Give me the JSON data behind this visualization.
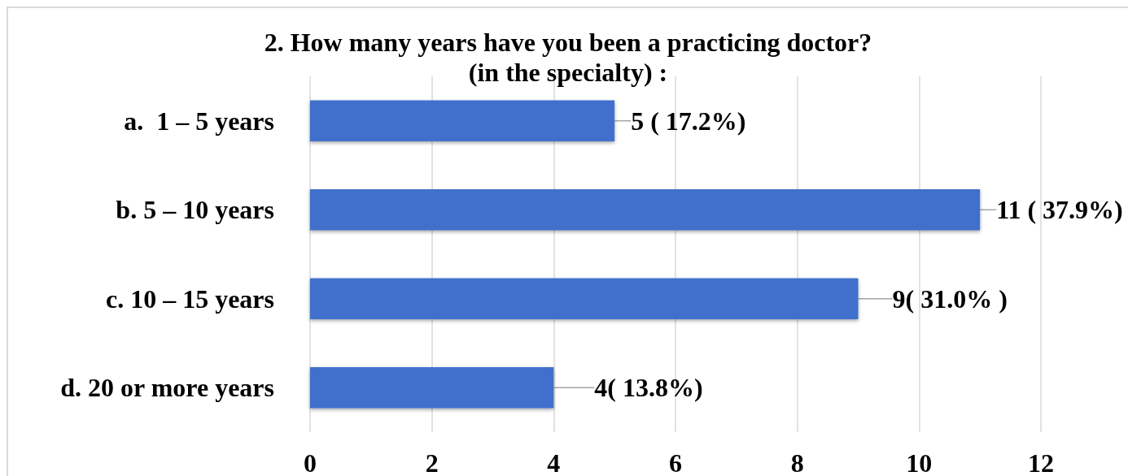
{
  "chart_data": {
    "type": "bar",
    "orientation": "horizontal",
    "title": "2. How many years have you been a practicing doctor?\n(in the specialty) :",
    "categories": [
      "a.  1 – 5 years",
      "b. 5 – 10 years",
      "c. 10 – 15 years",
      "d. 20 or more years"
    ],
    "values": [
      5,
      11,
      9,
      4
    ],
    "color": "#4070cb",
    "value_labels": [
      "5 ( 17.2%)",
      "11 ( 37.9%)",
      "9( 31.0% )",
      "4( 13.8%)"
    ],
    "xlim": [
      0,
      12
    ],
    "xticks": [
      0,
      2,
      4,
      6,
      8,
      10,
      12
    ],
    "grid": "x"
  }
}
